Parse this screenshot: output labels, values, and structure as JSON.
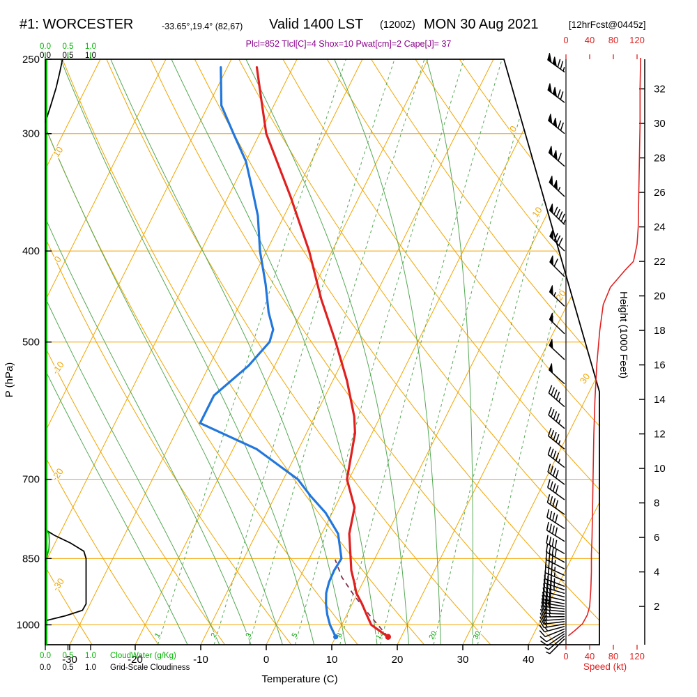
{
  "header": {
    "station_id": "#1: WORCESTER",
    "coords": "-33.65°,19.4° (82,67)",
    "valid": "Valid 1400 LST",
    "valid_z": "(1200Z)",
    "date": "MON 30 Aug 2021",
    "fcst_tag": "[12hrFcst@0445z]",
    "params": "Plcl=852 Tlcl[C]=4 Shox=10 Pwat[cm]=2 Cape[J]= 37"
  },
  "colors": {
    "background": "#ffffff",
    "frame": "#000000",
    "isolines_orange": "#f0a500",
    "adiabat_green": "#55a855",
    "mixing_label_green": "#00a000",
    "temperature_red": "#e02020",
    "dewpoint_blue": "#2277dd",
    "parcel_dashed": "#803050",
    "wind_barb": "#000000",
    "speed_axis_red": "#e02020",
    "cloudwater_green": "#00b400",
    "cloudiness_black": "#000000",
    "params_purple": "#8b008b"
  },
  "chart_data": {
    "type": "skewt_log_p_sounding",
    "axes": {
      "pressure_label": "P (hPa)",
      "pressure_ticks": [
        250,
        300,
        400,
        500,
        700,
        850,
        1000
      ],
      "temperature_label": "Temperature (C)",
      "temperature_ticks": [
        -30,
        -20,
        -10,
        0,
        10,
        20,
        30,
        40
      ],
      "height_label": "Height (1000 Feet)",
      "height_ticks": [
        2,
        4,
        6,
        8,
        10,
        12,
        14,
        16,
        18,
        20,
        22,
        24,
        26,
        28,
        30,
        32
      ],
      "speed_label": "Speed (kt)",
      "speed_ticks": [
        0,
        40,
        80,
        120
      ],
      "cloudwater_label": "CloudWater (g/Kg)",
      "cloudiness_label": "Grid-Scale Cloudiness",
      "cloud_ticks": [
        "0.0",
        "0.5",
        "1.0"
      ]
    },
    "isotherm_labels": [
      0,
      10,
      20,
      30
    ],
    "dry_adiabat_labels": [
      -30,
      -20,
      -10,
      0,
      10
    ],
    "mixing_ratio_lines": [
      1,
      2,
      3,
      5,
      8,
      12,
      20,
      30
    ],
    "moist_adiabats": [
      -15,
      -10,
      -5,
      0,
      5,
      10,
      15,
      20,
      25,
      30
    ],
    "surface": {
      "pressure": 1030,
      "temp_c": 18,
      "dewpoint_c": 10
    },
    "temperature_profile": [
      [
        1030,
        18
      ],
      [
        1000,
        14.5
      ],
      [
        975,
        13
      ],
      [
        950,
        11.5
      ],
      [
        925,
        9.8
      ],
      [
        900,
        8.6
      ],
      [
        875,
        7.3
      ],
      [
        850,
        6.3
      ],
      [
        800,
        4.2
      ],
      [
        750,
        3.0
      ],
      [
        700,
        -0.3
      ],
      [
        650,
        -1.8
      ],
      [
        625,
        -2.6
      ],
      [
        600,
        -4.0
      ],
      [
        550,
        -7.8
      ],
      [
        500,
        -12.5
      ],
      [
        450,
        -18.0
      ],
      [
        400,
        -23.5
      ],
      [
        350,
        -30.5
      ],
      [
        300,
        -39.0
      ],
      [
        275,
        -42.5
      ],
      [
        255,
        -45.5
      ]
    ],
    "dewpoint_profile": [
      [
        1030,
        10
      ],
      [
        1000,
        8.2
      ],
      [
        975,
        7.0
      ],
      [
        950,
        6.0
      ],
      [
        925,
        5.2
      ],
      [
        900,
        4.8
      ],
      [
        875,
        4.7
      ],
      [
        850,
        4.9
      ],
      [
        800,
        2.5
      ],
      [
        760,
        -1.0
      ],
      [
        730,
        -4.5
      ],
      [
        700,
        -7.8
      ],
      [
        650,
        -16.4
      ],
      [
        610,
        -27.0
      ],
      [
        570,
        -27.0
      ],
      [
        530,
        -24.0
      ],
      [
        500,
        -22.6
      ],
      [
        485,
        -23.0
      ],
      [
        465,
        -25.0
      ],
      [
        434,
        -27.6
      ],
      [
        400,
        -31.0
      ],
      [
        367,
        -34.0
      ],
      [
        343,
        -37.0
      ],
      [
        321,
        -40.0
      ],
      [
        300,
        -44.0
      ],
      [
        280,
        -48.0
      ],
      [
        255,
        -51.0
      ]
    ],
    "parcel_path": [
      [
        1030,
        18
      ],
      [
        980,
        13.8
      ],
      [
        930,
        9.6
      ],
      [
        890,
        6.4
      ],
      [
        852,
        4
      ]
    ],
    "wind_barbs": [
      [
        1035,
        225,
        4
      ],
      [
        1028,
        230,
        6
      ],
      [
        1022,
        235,
        8
      ],
      [
        1016,
        240,
        10
      ],
      [
        1010,
        248,
        12
      ],
      [
        1004,
        255,
        15
      ],
      [
        998,
        260,
        18
      ],
      [
        992,
        263,
        20
      ],
      [
        986,
        266,
        22
      ],
      [
        980,
        269,
        25
      ],
      [
        974,
        272,
        26
      ],
      [
        968,
        275,
        28
      ],
      [
        962,
        277,
        28
      ],
      [
        956,
        279,
        30
      ],
      [
        950,
        281,
        30
      ],
      [
        942,
        283,
        32
      ],
      [
        934,
        285,
        32
      ],
      [
        926,
        287,
        34
      ],
      [
        918,
        289,
        34
      ],
      [
        910,
        291,
        35
      ],
      [
        898,
        293,
        35
      ],
      [
        886,
        295,
        36
      ],
      [
        872,
        297,
        36
      ],
      [
        858,
        299,
        38
      ],
      [
        840,
        300,
        38
      ],
      [
        815,
        302,
        40
      ],
      [
        790,
        303,
        40
      ],
      [
        763,
        305,
        42
      ],
      [
        736,
        306,
        42
      ],
      [
        709,
        307,
        42
      ],
      [
        680,
        308,
        44
      ],
      [
        650,
        309,
        44
      ],
      [
        618,
        310,
        45
      ],
      [
        586,
        311,
        46
      ],
      [
        554,
        312,
        48
      ],
      [
        522,
        313,
        48
      ],
      [
        490,
        314,
        50
      ],
      [
        458,
        314,
        55
      ],
      [
        426,
        315,
        62
      ],
      [
        400,
        315,
        80
      ],
      [
        375,
        314,
        95
      ],
      [
        350,
        313,
        105
      ],
      [
        325,
        311,
        112
      ],
      [
        300,
        309,
        118
      ],
      [
        278,
        307,
        122
      ],
      [
        258,
        306,
        124
      ]
    ],
    "wind_speed_profile": [
      [
        0.3,
        4
      ],
      [
        0.6,
        15
      ],
      [
        1,
        28
      ],
      [
        1.5,
        36
      ],
      [
        2,
        40
      ],
      [
        3,
        42
      ],
      [
        4,
        43
      ],
      [
        5,
        43
      ],
      [
        6,
        44
      ],
      [
        8,
        45
      ],
      [
        10,
        46
      ],
      [
        12,
        47
      ],
      [
        14,
        49
      ],
      [
        16,
        52
      ],
      [
        18,
        57
      ],
      [
        19.5,
        63
      ],
      [
        20.5,
        75
      ],
      [
        21.5,
        100
      ],
      [
        22,
        114
      ],
      [
        23,
        120
      ],
      [
        24,
        122
      ],
      [
        26,
        123
      ],
      [
        28,
        124
      ],
      [
        30,
        125
      ],
      [
        32,
        125
      ],
      [
        33.8,
        126
      ]
    ],
    "cloud_water_profile": [
      [
        855,
        0
      ],
      [
        845,
        0.04
      ],
      [
        830,
        0.08
      ],
      [
        815,
        0.09
      ],
      [
        800,
        0.08
      ],
      [
        795,
        0.05
      ],
      [
        790,
        0
      ]
    ],
    "cloudiness_profile_segments": [
      [
        [
          990,
          0
        ],
        [
          978,
          0.45
        ],
        [
          965,
          0.82
        ],
        [
          950,
          0.9
        ],
        [
          850,
          0.9
        ],
        [
          835,
          0.85
        ],
        [
          818,
          0.55
        ],
        [
          803,
          0.2
        ],
        [
          792,
          0
        ]
      ],
      [
        [
          292,
          0
        ],
        [
          280,
          0.12
        ],
        [
          268,
          0.24
        ],
        [
          258,
          0.32
        ],
        [
          250,
          0.38
        ]
      ]
    ]
  }
}
